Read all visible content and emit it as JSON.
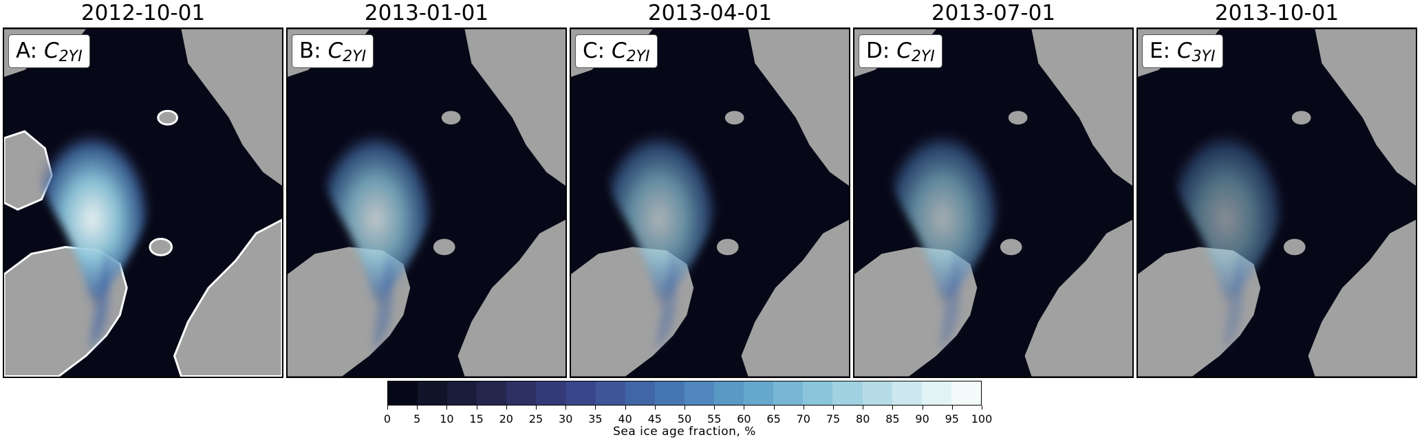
{
  "panels": [
    {
      "title": "2012-10-01",
      "letter": "A",
      "symbol": "C",
      "subscript": "2YI",
      "ice_level": 0.95
    },
    {
      "title": "2013-01-01",
      "letter": "B",
      "symbol": "C",
      "subscript": "2YI",
      "ice_level": 0.78
    },
    {
      "title": "2013-04-01",
      "letter": "C",
      "symbol": "C",
      "subscript": "2YI",
      "ice_level": 0.7
    },
    {
      "title": "2013-07-01",
      "letter": "D",
      "symbol": "C",
      "subscript": "2YI",
      "ice_level": 0.68
    },
    {
      "title": "2013-10-01",
      "letter": "E",
      "symbol": "C",
      "subscript": "3YI",
      "ice_level": 0.55
    }
  ],
  "colorbar": {
    "label": "Sea ice age fraction, %",
    "ticks": [
      "0",
      "5",
      "10",
      "15",
      "20",
      "25",
      "30",
      "35",
      "40",
      "45",
      "50",
      "55",
      "60",
      "65",
      "70",
      "75",
      "80",
      "85",
      "90",
      "95",
      "100"
    ],
    "colors": [
      "#070817",
      "#111329",
      "#1b1c3b",
      "#25264e",
      "#2e2f63",
      "#343a78",
      "#3a468a",
      "#3e5698",
      "#4166a6",
      "#4676b2",
      "#4f87bd",
      "#5a98c6",
      "#67a8ce",
      "#77b7d5",
      "#8ac5db",
      "#a0d2e1",
      "#b6dde7",
      "#cce8ee",
      "#e2f3f5",
      "#f3fbfb"
    ]
  },
  "map_colors": {
    "ocean": "#070817",
    "land": "#a1a1a1",
    "coast_highlight": "#ffffff"
  }
}
